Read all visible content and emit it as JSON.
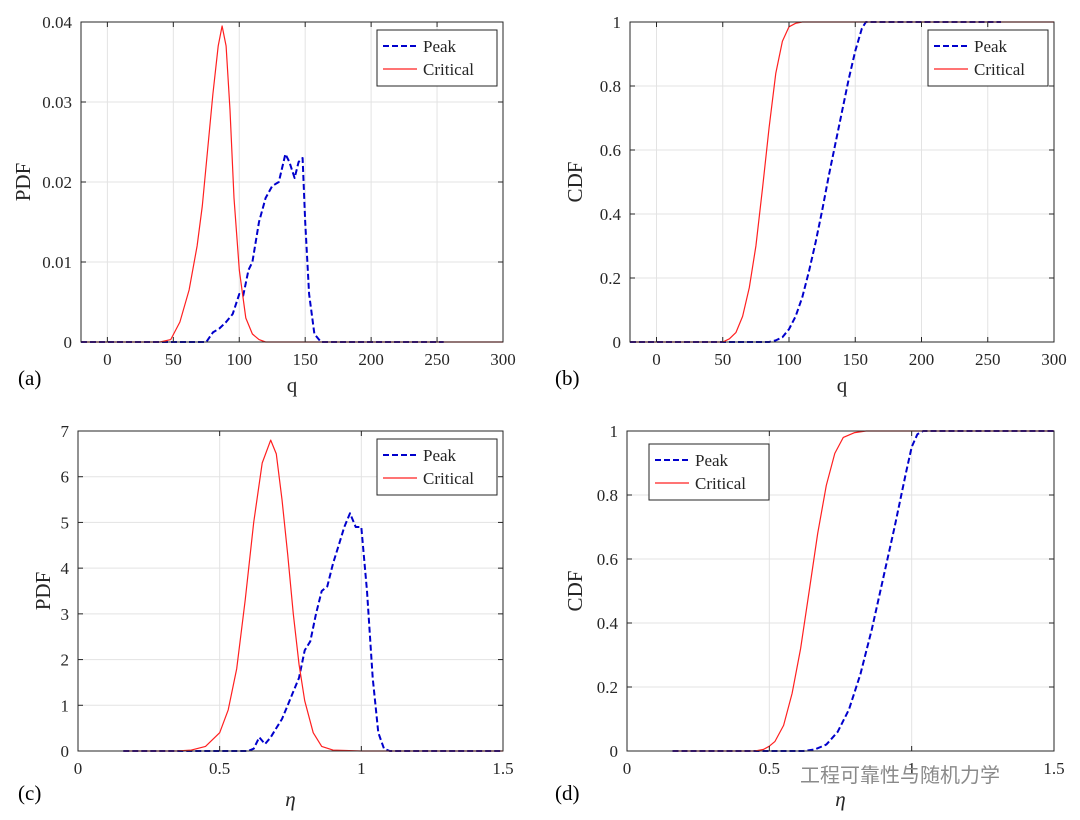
{
  "watermark": "工程可靠性与随机力学",
  "colors": {
    "peak": "#0000cc",
    "critical": "#ff2020",
    "grid": "#e3e3e3",
    "axis": "#262626"
  },
  "chart_data": [
    {
      "type": "line",
      "label": "(a)",
      "xlabel": "q",
      "ylabel": "PDF",
      "xlim": [
        -20,
        300
      ],
      "ylim": [
        0,
        0.04
      ],
      "xticks": [
        0,
        50,
        100,
        150,
        200,
        250,
        300
      ],
      "xtick_labels": [
        "0",
        "50",
        "100",
        "150",
        "200",
        "250",
        "300"
      ],
      "yticks": [
        0,
        0.01,
        0.02,
        0.03,
        0.04
      ],
      "ytick_labels": [
        "0",
        "0.01",
        "0.02",
        "0.03",
        "0.04"
      ],
      "grid": true,
      "legend": "top-right",
      "series": [
        {
          "name": "Peak",
          "style": "dashed",
          "color": "#0000cc",
          "x": [
            -20,
            75,
            80,
            85,
            90,
            95,
            100,
            103,
            107,
            110,
            115,
            120,
            125,
            130,
            135,
            138,
            142,
            145,
            148,
            150,
            153,
            157,
            162,
            166,
            170,
            200,
            255
          ],
          "y": [
            0,
            0,
            0.0012,
            0.0017,
            0.0025,
            0.0035,
            0.006,
            0.0058,
            0.009,
            0.01,
            0.015,
            0.018,
            0.0195,
            0.02,
            0.0235,
            0.0225,
            0.0205,
            0.0225,
            0.023,
            0.015,
            0.006,
            0.001,
            0,
            0,
            0,
            0,
            0
          ]
        },
        {
          "name": "Critical",
          "style": "solid",
          "color": "#ff2020",
          "x": [
            -20,
            40,
            48,
            55,
            62,
            68,
            72,
            76,
            80,
            84,
            87,
            90,
            93,
            96,
            100,
            105,
            110,
            115,
            120,
            130,
            160,
            300
          ],
          "y": [
            0,
            0,
            0.0003,
            0.0025,
            0.0065,
            0.012,
            0.017,
            0.024,
            0.031,
            0.037,
            0.0395,
            0.037,
            0.029,
            0.018,
            0.009,
            0.003,
            0.001,
            0.0003,
            0,
            0,
            0,
            0
          ]
        }
      ]
    },
    {
      "type": "line",
      "label": "(b)",
      "xlabel": "q",
      "ylabel": "CDF",
      "xlim": [
        -20,
        300
      ],
      "ylim": [
        0,
        1
      ],
      "xticks": [
        0,
        50,
        100,
        150,
        200,
        250,
        300
      ],
      "xtick_labels": [
        "0",
        "50",
        "100",
        "150",
        "200",
        "250",
        "300"
      ],
      "yticks": [
        0,
        0.2,
        0.4,
        0.6,
        0.8,
        1
      ],
      "ytick_labels": [
        "0",
        "0.2",
        "0.4",
        "0.6",
        "0.8",
        "1"
      ],
      "grid": true,
      "legend": "top-right",
      "series": [
        {
          "name": "Peak",
          "style": "dashed",
          "color": "#0000cc",
          "x": [
            -20,
            85,
            90,
            95,
            100,
            105,
            110,
            115,
            120,
            125,
            130,
            135,
            140,
            145,
            150,
            155,
            158,
            162,
            200,
            260
          ],
          "y": [
            0,
            0,
            0.005,
            0.015,
            0.04,
            0.08,
            0.14,
            0.22,
            0.31,
            0.41,
            0.52,
            0.62,
            0.72,
            0.82,
            0.91,
            0.98,
            1,
            1,
            1,
            1
          ]
        },
        {
          "name": "Critical",
          "style": "solid",
          "color": "#ff2020",
          "x": [
            -20,
            50,
            55,
            60,
            65,
            70,
            75,
            80,
            85,
            90,
            95,
            100,
            105,
            110,
            115,
            120,
            300
          ],
          "y": [
            0,
            0,
            0.01,
            0.03,
            0.08,
            0.17,
            0.3,
            0.48,
            0.67,
            0.84,
            0.94,
            0.985,
            0.996,
            1,
            1,
            1,
            1
          ]
        }
      ]
    },
    {
      "type": "line",
      "label": "(c)",
      "xlabel": "η",
      "ylabel": "PDF",
      "xlim": [
        0,
        1.5
      ],
      "ylim": [
        0,
        7
      ],
      "xticks": [
        0,
        0.5,
        1,
        1.5
      ],
      "xtick_labels": [
        "0",
        "0.5",
        "1",
        "1.5"
      ],
      "yticks": [
        0,
        1,
        2,
        3,
        4,
        5,
        6,
        7
      ],
      "ytick_labels": [
        "0",
        "1",
        "2",
        "3",
        "4",
        "5",
        "6",
        "7"
      ],
      "grid": true,
      "legend": "top-right",
      "series": [
        {
          "name": "Peak",
          "style": "dashed",
          "color": "#0000cc",
          "x": [
            0.16,
            0.6,
            0.62,
            0.64,
            0.66,
            0.68,
            0.7,
            0.72,
            0.74,
            0.76,
            0.78,
            0.8,
            0.82,
            0.84,
            0.86,
            0.88,
            0.9,
            0.92,
            0.94,
            0.96,
            0.98,
            1.0,
            1.02,
            1.04,
            1.06,
            1.08,
            1.1,
            1.5
          ],
          "y": [
            0,
            0,
            0.05,
            0.3,
            0.15,
            0.3,
            0.5,
            0.7,
            1.0,
            1.3,
            1.6,
            2.2,
            2.4,
            3.0,
            3.5,
            3.6,
            4.1,
            4.5,
            4.9,
            5.2,
            4.9,
            4.9,
            3.5,
            1.6,
            0.4,
            0.05,
            0,
            0
          ]
        },
        {
          "name": "Critical",
          "style": "solid",
          "color": "#ff2020",
          "x": [
            0.16,
            0.35,
            0.4,
            0.45,
            0.5,
            0.53,
            0.56,
            0.59,
            0.62,
            0.65,
            0.68,
            0.7,
            0.72,
            0.74,
            0.76,
            0.78,
            0.8,
            0.83,
            0.86,
            0.9,
            1.0,
            1.5
          ],
          "y": [
            0,
            0,
            0.02,
            0.1,
            0.4,
            0.9,
            1.8,
            3.3,
            5.0,
            6.3,
            6.8,
            6.5,
            5.5,
            4.3,
            3.0,
            1.9,
            1.1,
            0.4,
            0.1,
            0.02,
            0,
            0
          ]
        }
      ]
    },
    {
      "type": "line",
      "label": "(d)",
      "xlabel": "η",
      "ylabel": "CDF",
      "xlim": [
        0,
        1.5
      ],
      "ylim": [
        0,
        1
      ],
      "xticks": [
        0,
        0.5,
        1,
        1.5
      ],
      "xtick_labels": [
        "0",
        "0.5",
        "1",
        "1.5"
      ],
      "yticks": [
        0,
        0.2,
        0.4,
        0.6,
        0.8,
        1
      ],
      "ytick_labels": [
        "0",
        "0.2",
        "0.4",
        "0.6",
        "0.8",
        "1"
      ],
      "grid": true,
      "legend": "top-left",
      "series": [
        {
          "name": "Peak",
          "style": "dashed",
          "color": "#0000cc",
          "x": [
            0.16,
            0.62,
            0.66,
            0.7,
            0.74,
            0.78,
            0.82,
            0.86,
            0.9,
            0.94,
            0.98,
            1.0,
            1.02,
            1.04,
            1.08,
            1.5
          ],
          "y": [
            0,
            0,
            0.005,
            0.02,
            0.06,
            0.13,
            0.24,
            0.38,
            0.54,
            0.7,
            0.87,
            0.95,
            0.99,
            1,
            1,
            1
          ]
        },
        {
          "name": "Critical",
          "style": "solid",
          "color": "#ff2020",
          "x": [
            0.16,
            0.45,
            0.48,
            0.5,
            0.52,
            0.55,
            0.58,
            0.61,
            0.64,
            0.67,
            0.7,
            0.73,
            0.76,
            0.8,
            0.84,
            0.9,
            1.0,
            1.5
          ],
          "y": [
            0,
            0,
            0.005,
            0.015,
            0.03,
            0.08,
            0.18,
            0.32,
            0.5,
            0.68,
            0.83,
            0.93,
            0.98,
            0.995,
            1,
            1,
            1,
            1
          ]
        }
      ]
    }
  ]
}
